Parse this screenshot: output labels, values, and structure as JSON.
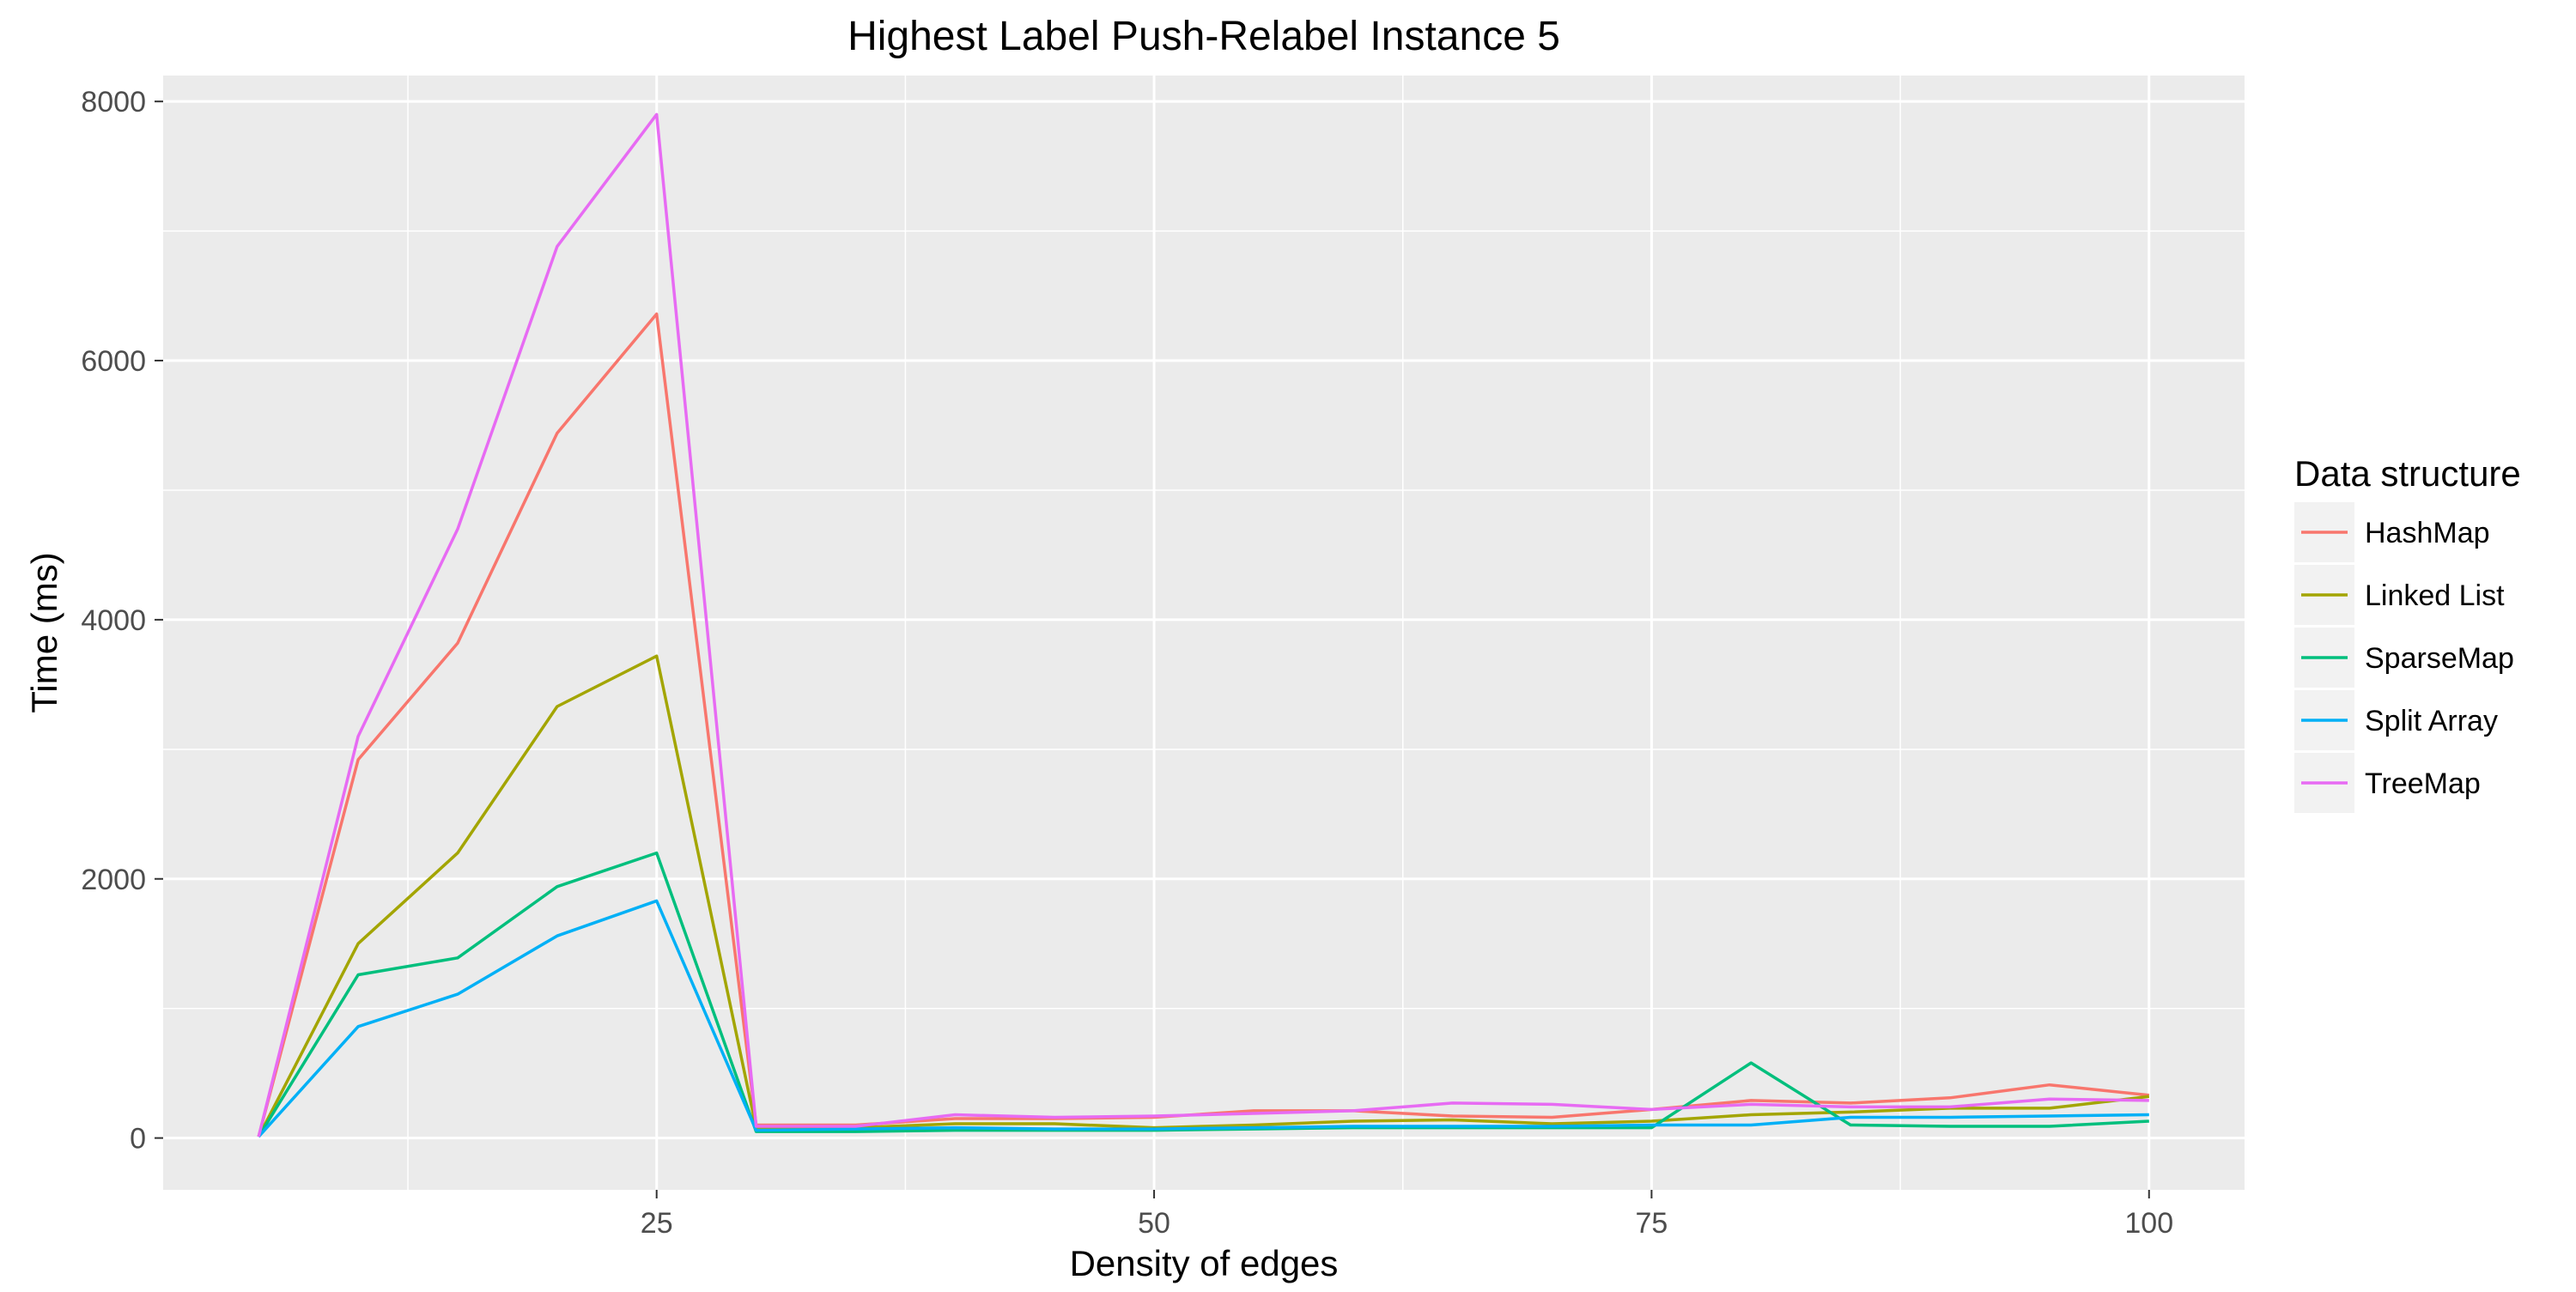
{
  "chart_data": {
    "type": "line",
    "title": "Highest Label Push-Relabel Instance 5",
    "xlabel": "Density of edges",
    "ylabel": "Time (ms)",
    "xlim": [
      0.2,
      104.8
    ],
    "ylim": [
      -400,
      8200
    ],
    "x_ticks": [
      25,
      50,
      75,
      100
    ],
    "y_ticks": [
      0,
      2000,
      4000,
      6000,
      8000
    ],
    "grid": true,
    "legend": {
      "title": "Data structure",
      "position": "right"
    },
    "x": [
      5,
      10,
      15,
      20,
      25,
      30,
      35,
      40,
      45,
      50,
      55,
      60,
      65,
      70,
      75,
      80,
      85,
      90,
      95,
      100
    ],
    "series": [
      {
        "name": "HashMap",
        "color": "#F8766D",
        "values": [
          10,
          2920,
          3820,
          5440,
          6360,
          100,
          100,
          150,
          150,
          160,
          210,
          210,
          170,
          160,
          220,
          290,
          270,
          310,
          410,
          330
        ]
      },
      {
        "name": "Linked List",
        "color": "#A3A500",
        "values": [
          10,
          1500,
          2200,
          3330,
          3720,
          80,
          80,
          110,
          110,
          80,
          100,
          130,
          140,
          110,
          130,
          180,
          200,
          230,
          230,
          320
        ]
      },
      {
        "name": "SparseMap",
        "color": "#00BF7D",
        "values": [
          10,
          1260,
          1390,
          1940,
          2200,
          50,
          50,
          60,
          60,
          60,
          70,
          80,
          80,
          80,
          80,
          580,
          100,
          90,
          90,
          130
        ]
      },
      {
        "name": "Split Array",
        "color": "#00B0F6",
        "values": [
          10,
          860,
          1110,
          1560,
          1830,
          60,
          70,
          80,
          70,
          70,
          80,
          90,
          90,
          90,
          100,
          100,
          160,
          160,
          170,
          180
        ]
      },
      {
        "name": "TreeMap",
        "color": "#E76BF3",
        "values": [
          10,
          3100,
          4700,
          6880,
          7900,
          90,
          90,
          180,
          160,
          170,
          190,
          210,
          270,
          260,
          220,
          260,
          240,
          240,
          300,
          290
        ]
      }
    ]
  }
}
